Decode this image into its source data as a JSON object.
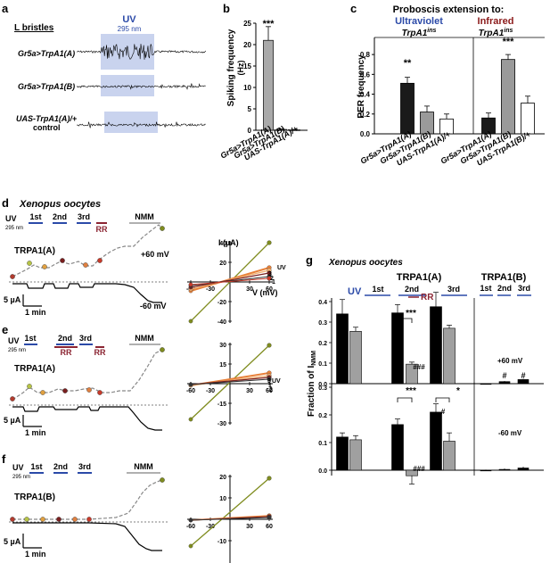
{
  "panel_labels": {
    "a": "a",
    "b": "b",
    "c": "c",
    "d": "d",
    "e": "e",
    "f": "f",
    "g": "g"
  },
  "colors": {
    "uv_blue": "#2b4aa8",
    "infrared_red": "#8b1a1a",
    "rr_red": "#8b2432",
    "dark_bar": "#1a1a1a",
    "gray_bar": "#9a9a9a",
    "uv_box": "#c9d3ee",
    "nmm_bar": "#b0b0b0",
    "iv_nmm": "#7f8c1f",
    "iv_orange": "#e8813a"
  },
  "panel_a": {
    "heading": "L bristles",
    "uv_label": "UV",
    "uv_wavelength": "295 nm",
    "traces": [
      {
        "label": "Gr5a>TrpA1(A)",
        "active": true
      },
      {
        "label": "Gr5a>TrpA1(B)",
        "active": false
      },
      {
        "label": "UAS-TrpA1(A)/+",
        "label2": "control",
        "active": false
      }
    ]
  },
  "panel_b": {
    "ylabel": "Spiking frequency",
    "yunit": "(Hz)",
    "stars": "***",
    "yticks": [
      "0",
      "5",
      "10",
      "15",
      "20",
      "25"
    ],
    "categories": [
      "Gr5a>TrpA1(A)",
      "Gr5a>TrpA1(B)",
      "UAS-TrpA1(A)/+"
    ]
  },
  "panel_c": {
    "title": "Proboscis extension to:",
    "group1": "Ultraviolet",
    "group2": "Infrared",
    "sub1": "TrpA1",
    "sub1_sup": "ins",
    "sub2": "TrpA1",
    "sub2_sup": "ins",
    "ylabel": "PER frequency",
    "yticks": [
      "0.0",
      "0.2",
      "0.4",
      "0.6",
      "0.8"
    ],
    "stars1": "**",
    "stars2": "***",
    "categories1": [
      "Gr5a>TrpA1(A)",
      "Gr5a>TrpA1(B)",
      "UAS-TrpA1(A)/+"
    ],
    "categories2": [
      "Gr5a>TrpA1(A)",
      "Gr5a>TrpA1(B)",
      "UAS-TrpA1(B)/+"
    ]
  },
  "panel_d": {
    "title": "Xenopus oocytes",
    "uv": "UV",
    "uv_nm": "295 nm",
    "labels": [
      "1st",
      "2nd",
      "3rd"
    ],
    "rr": "RR",
    "nmm": "NMM",
    "construct": "TRPA1(A)",
    "plus60": "+60 mV",
    "minus60": "-60 mV",
    "scale_i": "5 µA",
    "scale_t": "1 min",
    "iv_ylabel": "I (µA)",
    "iv_xlabel": "V (mV)",
    "iv_yticks": [
      "40",
      "20",
      "-20",
      "-40"
    ],
    "iv_xticks": [
      "-60",
      "-30",
      "30",
      "60"
    ],
    "iv_num_labels": [
      "3",
      "2",
      "1",
      "UV"
    ]
  },
  "panel_e": {
    "uv": "UV",
    "uv_nm": "295 nm",
    "labels": [
      "1st",
      "2nd",
      "3rd"
    ],
    "rr1": "RR",
    "rr2": "RR",
    "nmm": "NMM",
    "construct": "TRPA1(A)",
    "scale_i": "5 µA",
    "scale_t": "1 min",
    "iv_yticks": [
      "30",
      "15",
      "-15",
      "-30"
    ],
    "iv_xticks": [
      "-60",
      "-30",
      "30",
      "60"
    ],
    "iv_num_labels": [
      "3",
      "UV",
      "1",
      "2"
    ]
  },
  "panel_f": {
    "uv": "UV",
    "uv_nm": "295 nm",
    "labels": [
      "1st",
      "2nd",
      "3rd"
    ],
    "nmm": "NMM",
    "construct": "TRPA1(B)",
    "scale_i": "5 µA",
    "scale_t": "1 min",
    "iv_yticks": [
      "20",
      "10",
      "-10"
    ],
    "iv_xticks": [
      "-60",
      "-30",
      "30",
      "60"
    ]
  },
  "panel_g": {
    "title": "Xenopus oocytes",
    "group_a": "TRPA1(A)",
    "group_b": "TRPA1(B)",
    "uv": "UV",
    "labels": [
      "1st",
      "2nd",
      "3rd"
    ],
    "labels_b": [
      "1st",
      "2nd",
      "3rd"
    ],
    "rr": "RR",
    "ylabel": "Fraction of I",
    "ylabel_sub": "NMM",
    "yticks": [
      "0.0",
      "0.1",
      "0.2",
      "0.3",
      "0.4"
    ],
    "plus60": "+60 mV",
    "minus60": "-60 mV",
    "sig_top": "***",
    "hash_top": "###",
    "sig_bot1": "***",
    "sig_bot2": "*",
    "hash_bot": "###",
    "hash_bot2": "#",
    "hash_b1": "#",
    "hash_b2": "#"
  },
  "chart_data": [
    {
      "type": "bar",
      "panel": "b",
      "ylabel": "Spiking frequency (Hz)",
      "categories": [
        "Gr5a>TrpA1(A)",
        "Gr5a>TrpA1(B)",
        "UAS-TrpA1(A)/+"
      ],
      "values": [
        21.0,
        0.2,
        0.1
      ],
      "errors": [
        3.2,
        0.1,
        0.1
      ],
      "ylim": [
        0,
        25
      ]
    },
    {
      "type": "bar",
      "panel": "c",
      "ylabel": "PER frequency",
      "series": [
        {
          "name": "Ultraviolet",
          "categories": [
            "Gr5a>TrpA1(A)",
            "Gr5a>TrpA1(B)",
            "UAS-TrpA1(A)/+"
          ],
          "values": [
            0.51,
            0.22,
            0.15
          ],
          "errors": [
            0.06,
            0.06,
            0.05
          ]
        },
        {
          "name": "Infrared",
          "categories": [
            "Gr5a>TrpA1(A)",
            "Gr5a>TrpA1(B)",
            "UAS-TrpA1(B)/+"
          ],
          "values": [
            0.16,
            0.75,
            0.31
          ],
          "errors": [
            0.05,
            0.05,
            0.07
          ]
        }
      ],
      "ylim": [
        0,
        0.9
      ]
    },
    {
      "type": "bar",
      "panel": "g",
      "ylabel": "Fraction of I NMM",
      "categories": [
        "1st",
        "2nd",
        "3rd"
      ],
      "series": [
        {
          "name": "TRPA1(A) +60 mV dark",
          "values": [
            0.34,
            0.345,
            0.375
          ],
          "errors": [
            0.07,
            0.04,
            0.07
          ]
        },
        {
          "name": "TRPA1(A) +60 mV gray",
          "values": [
            0.255,
            0.095,
            0.27
          ],
          "errors": [
            0.02,
            0.01,
            0.015
          ]
        },
        {
          "name": "TRPA1(B) +60 mV dark",
          "values": [
            0.0,
            0.01,
            0.02
          ],
          "errors": [
            0.002,
            0.003,
            0.004
          ]
        },
        {
          "name": "TRPA1(A) -60 mV dark",
          "values": [
            0.12,
            0.165,
            0.21
          ],
          "errors": [
            0.015,
            0.02,
            0.03
          ]
        },
        {
          "name": "TRPA1(A) -60 mV gray",
          "values": [
            0.11,
            -0.02,
            0.105
          ],
          "errors": [
            0.015,
            0.03,
            0.03
          ]
        },
        {
          "name": "TRPA1(B) -60 mV dark",
          "values": [
            0.0,
            0.003,
            0.008
          ],
          "errors": [
            0.002,
            0.003,
            0.005
          ]
        }
      ],
      "ylim": [
        0,
        0.4
      ]
    }
  ]
}
